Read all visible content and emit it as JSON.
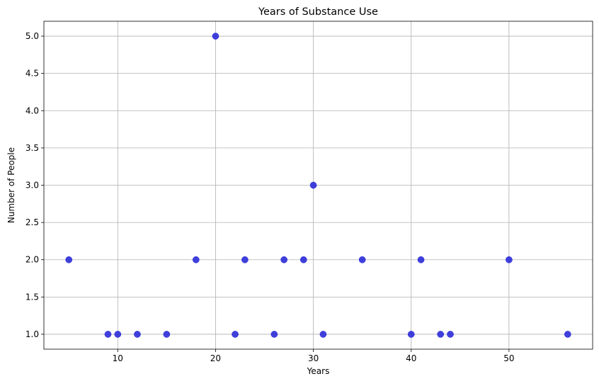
{
  "chart_data": {
    "type": "scatter",
    "title": "Years of Substance Use",
    "xlabel": "Years",
    "ylabel": "Number of People",
    "xlim": [
      2.45,
      58.55
    ],
    "ylim": [
      0.8,
      5.2
    ],
    "xticks": [
      10,
      20,
      30,
      40,
      50
    ],
    "xtick_labels": [
      "10",
      "20",
      "30",
      "40",
      "50"
    ],
    "yticks": [
      1.0,
      1.5,
      2.0,
      2.5,
      3.0,
      3.5,
      4.0,
      4.5,
      5.0
    ],
    "ytick_labels": [
      "1.0",
      "1.5",
      "2.0",
      "2.5",
      "3.0",
      "3.5",
      "4.0",
      "4.5",
      "5.0"
    ],
    "grid": true,
    "marker_color": "#2b2bd9",
    "points": [
      {
        "x": 5,
        "y": 2
      },
      {
        "x": 9,
        "y": 1
      },
      {
        "x": 10,
        "y": 1
      },
      {
        "x": 12,
        "y": 1
      },
      {
        "x": 15,
        "y": 1
      },
      {
        "x": 18,
        "y": 2
      },
      {
        "x": 20,
        "y": 5
      },
      {
        "x": 22,
        "y": 1
      },
      {
        "x": 23,
        "y": 2
      },
      {
        "x": 26,
        "y": 1
      },
      {
        "x": 27,
        "y": 2
      },
      {
        "x": 29,
        "y": 2
      },
      {
        "x": 30,
        "y": 3
      },
      {
        "x": 31,
        "y": 1
      },
      {
        "x": 35,
        "y": 2
      },
      {
        "x": 40,
        "y": 1
      },
      {
        "x": 41,
        "y": 2
      },
      {
        "x": 43,
        "y": 1
      },
      {
        "x": 44,
        "y": 1
      },
      {
        "x": 50,
        "y": 2
      },
      {
        "x": 56,
        "y": 1
      }
    ]
  }
}
